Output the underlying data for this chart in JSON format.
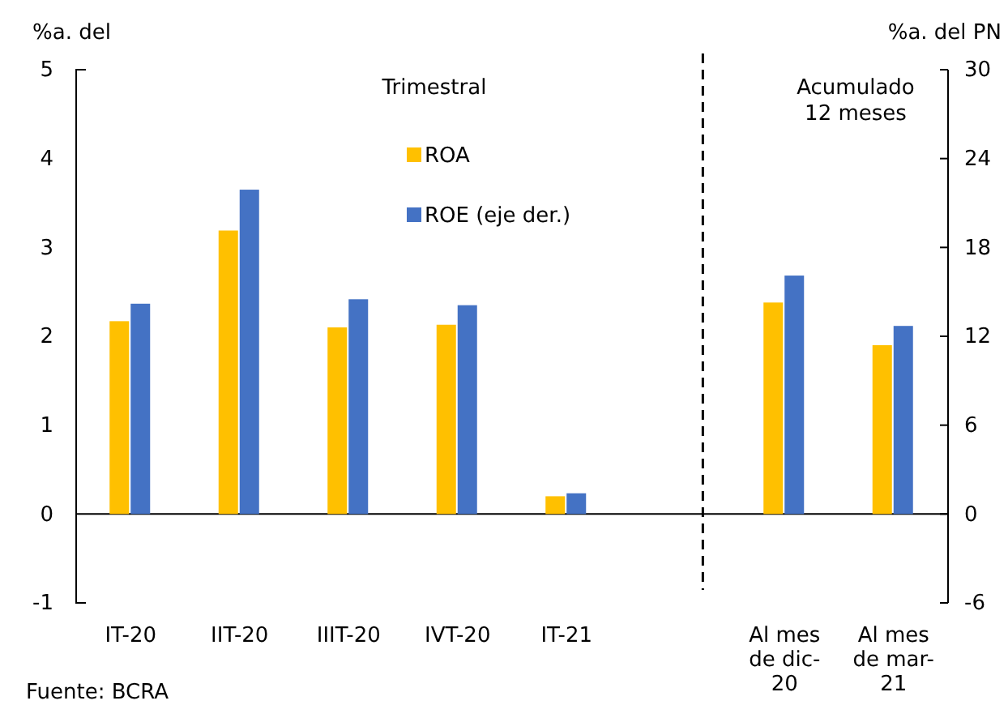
{
  "chart_data": {
    "type": "bar",
    "ylabel": "%a. del",
    "y2label": "%a. del PN",
    "categories": [
      "IT-20",
      "IIT-20",
      "IIIT-20",
      "IVT-20",
      "IT-21",
      null,
      "Al mes de dic-20",
      "Al mes de mar-21"
    ],
    "series": [
      {
        "name": "ROA",
        "color": "#ffc000",
        "values": [
          2.17,
          3.19,
          2.1,
          2.13,
          0.2,
          null,
          2.38,
          1.9
        ]
      },
      {
        "name": "ROE (eje der.)",
        "color": "#4472c4",
        "axis": "y2",
        "values": [
          14.2,
          21.9,
          14.5,
          14.1,
          1.4,
          null,
          16.1,
          12.7
        ]
      }
    ],
    "ylim": [
      -1,
      5
    ],
    "yticks": [
      -1,
      0,
      1,
      2,
      3,
      4,
      5
    ],
    "y2lim": [
      -6,
      30
    ],
    "y2ticks": [
      -6,
      0,
      6,
      12,
      18,
      24,
      30
    ],
    "legend": "top",
    "ref_lines": [
      {
        "axis": "y",
        "value": 0
      }
    ],
    "annotations": [
      "Trimestral",
      "Acumulado 12 meses",
      "Fuente: BCRA"
    ]
  }
}
